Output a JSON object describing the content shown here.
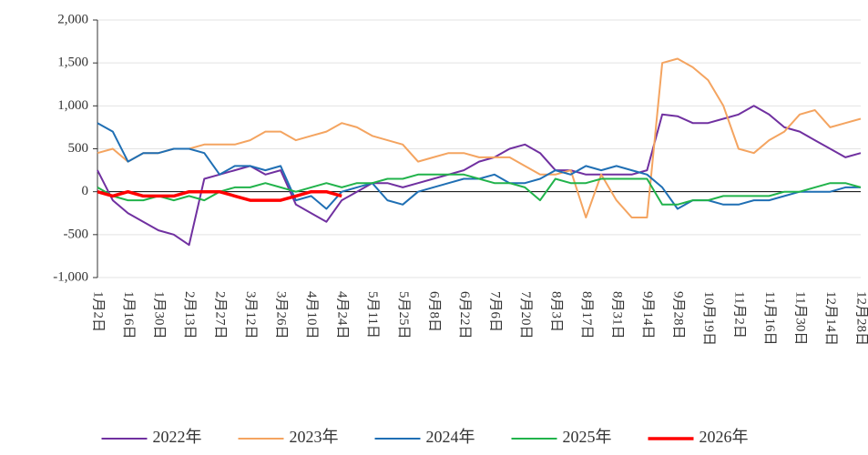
{
  "chart_data": {
    "type": "line",
    "categories": [
      "1月2日",
      null,
      "1月16日",
      null,
      "1月30日",
      null,
      "2月13日",
      null,
      "2月27日",
      null,
      "3月12日",
      null,
      "3月26日",
      null,
      "4月10日",
      null,
      "4月24日",
      null,
      "5月11日",
      null,
      "5月25日",
      null,
      "6月8日",
      null,
      "6月22日",
      null,
      "7月6日",
      null,
      "7月20日",
      null,
      "8月3日",
      null,
      "8月17日",
      null,
      "8月31日",
      null,
      "9月14日",
      null,
      "9月28日",
      null,
      "10月19日",
      null,
      "11月2日",
      null,
      "11月16日",
      null,
      "11月30日",
      null,
      "12月14日",
      null,
      "12月28日"
    ],
    "series": [
      {
        "name": "2022年",
        "color": "#7030a0",
        "width": 2,
        "values": [
          250,
          -100,
          -250,
          -350,
          -450,
          -500,
          -620,
          150,
          200,
          250,
          300,
          200,
          250,
          -150,
          -250,
          -350,
          -100,
          0,
          100,
          100,
          50,
          100,
          150,
          200,
          250,
          350,
          400,
          500,
          550,
          450,
          250,
          250,
          200,
          200,
          200,
          200,
          250,
          900,
          880,
          800,
          800,
          850,
          900,
          1000,
          900,
          750,
          700,
          600,
          500,
          400,
          450
        ]
      },
      {
        "name": "2023年",
        "color": "#f4a460",
        "width": 2,
        "values": [
          450,
          500,
          350,
          450,
          450,
          500,
          500,
          550,
          550,
          550,
          600,
          700,
          700,
          600,
          650,
          700,
          800,
          750,
          650,
          600,
          550,
          350,
          400,
          450,
          450,
          400,
          400,
          400,
          300,
          200,
          200,
          250,
          -300,
          200,
          -100,
          -300,
          -300,
          1500,
          1550,
          1450,
          1300,
          1000,
          500,
          450,
          600,
          700,
          900,
          950,
          750,
          800,
          850
        ]
      },
      {
        "name": "2024年",
        "color": "#1f6fb4",
        "width": 2,
        "values": [
          800,
          700,
          350,
          450,
          450,
          500,
          500,
          450,
          200,
          300,
          300,
          250,
          300,
          -100,
          -50,
          -200,
          0,
          50,
          100,
          -100,
          -150,
          0,
          50,
          100,
          150,
          150,
          200,
          100,
          100,
          150,
          250,
          200,
          300,
          250,
          300,
          250,
          200,
          50,
          -200,
          -100,
          -100,
          -150,
          -150,
          -100,
          -100,
          -50,
          0,
          0,
          0,
          50,
          50
        ]
      },
      {
        "name": "2025年",
        "color": "#21b34b",
        "width": 2,
        "values": [
          50,
          -50,
          -100,
          -100,
          -50,
          -100,
          -50,
          -100,
          0,
          50,
          50,
          100,
          50,
          0,
          50,
          100,
          50,
          100,
          100,
          150,
          150,
          200,
          200,
          200,
          200,
          150,
          100,
          100,
          50,
          -100,
          150,
          100,
          100,
          150,
          150,
          150,
          150,
          -150,
          -150,
          -100,
          -100,
          -50,
          -50,
          -50,
          -50,
          0,
          0,
          50,
          100,
          100,
          50
        ]
      },
      {
        "name": "2026年",
        "color": "#ff0000",
        "width": 3.5,
        "values": [
          0,
          -50,
          0,
          -50,
          -50,
          -50,
          0,
          0,
          0,
          -50,
          -100,
          -100,
          -100,
          -50,
          0,
          0,
          -50,
          null,
          null,
          null,
          null,
          null,
          null,
          null,
          null,
          null,
          null,
          null,
          null,
          null,
          null,
          null,
          null,
          null,
          null,
          null,
          null,
          null,
          null,
          null,
          null,
          null,
          null,
          null,
          null,
          null,
          null,
          null,
          null,
          null,
          null
        ]
      }
    ],
    "ylim": [
      -1000,
      2000
    ],
    "yticks": [
      {
        "value": -1000,
        "label": "-1,000"
      },
      -500,
      0,
      500,
      {
        "value": 1000,
        "label": "1,000"
      },
      {
        "value": 1500,
        "label": "1,500"
      },
      {
        "value": 2000,
        "label": "2,000"
      }
    ],
    "grid": true,
    "legend": "bottom"
  }
}
